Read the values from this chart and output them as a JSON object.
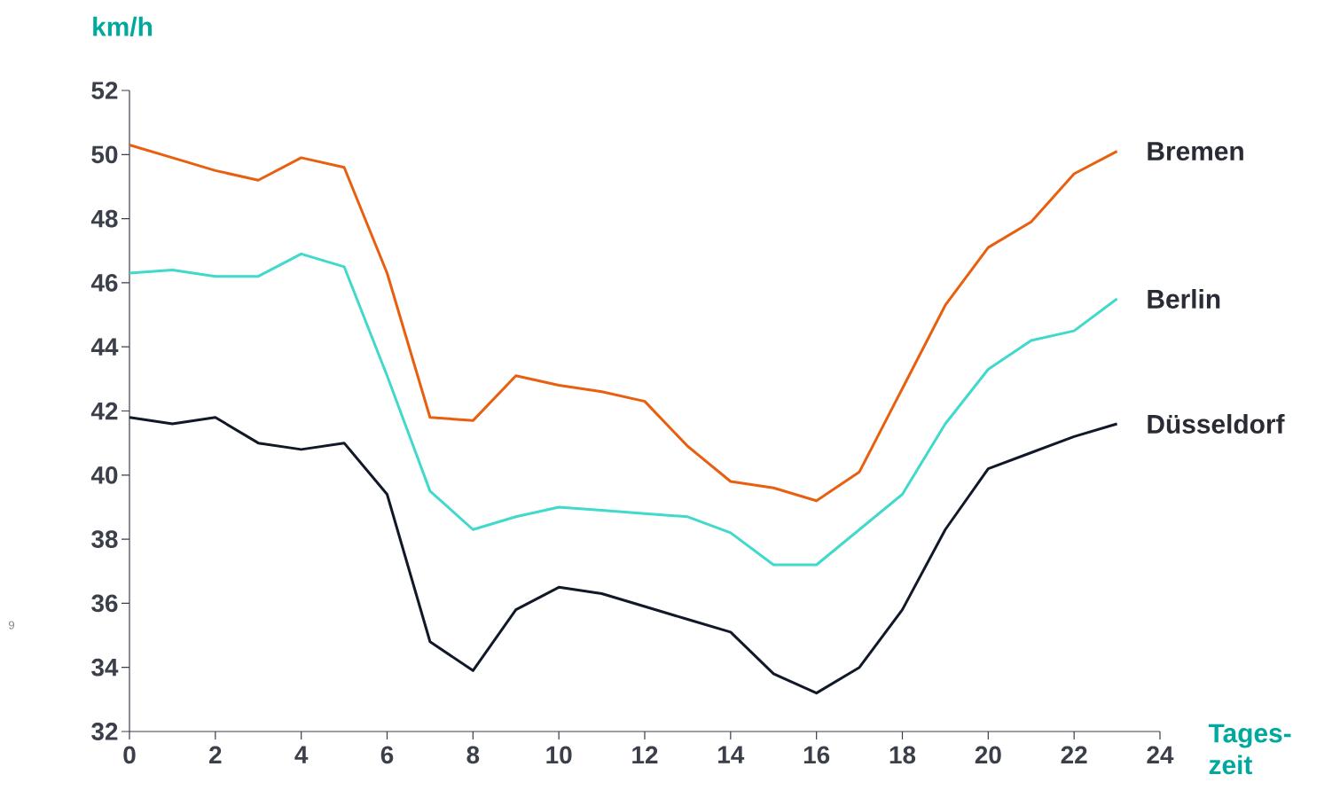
{
  "chart_data": {
    "type": "line",
    "ylabel": "km/h",
    "xlabel": "Tages- zeit",
    "x": [
      0,
      1,
      2,
      3,
      4,
      5,
      6,
      7,
      8,
      9,
      10,
      11,
      12,
      13,
      14,
      15,
      16,
      17,
      18,
      19,
      20,
      21,
      22,
      23
    ],
    "series": [
      {
        "name": "Bremen",
        "color": "#e8600f",
        "values": [
          50.3,
          49.9,
          49.5,
          49.2,
          49.9,
          49.6,
          46.3,
          41.8,
          41.7,
          43.1,
          42.8,
          42.6,
          42.3,
          40.9,
          39.8,
          39.6,
          39.2,
          40.1,
          42.7,
          45.3,
          47.1,
          47.9,
          49.4,
          50.1
        ]
      },
      {
        "name": "Berlin",
        "color": "#40d9cc",
        "values": [
          46.3,
          46.4,
          46.2,
          46.2,
          46.9,
          46.5,
          43.1,
          39.5,
          38.3,
          38.7,
          39.0,
          38.9,
          38.8,
          38.7,
          38.2,
          37.2,
          37.2,
          38.3,
          39.4,
          41.6,
          43.3,
          44.2,
          44.5,
          45.5
        ]
      },
      {
        "name": "Düsseldorf",
        "color": "#111827",
        "values": [
          41.8,
          41.6,
          41.8,
          41.0,
          40.8,
          41.0,
          39.4,
          34.8,
          33.9,
          35.8,
          36.5,
          36.3,
          35.9,
          35.5,
          35.1,
          33.8,
          33.2,
          34.0,
          35.8,
          38.3,
          40.2,
          40.7,
          41.2,
          41.6
        ]
      }
    ],
    "xlim": [
      0,
      24
    ],
    "ylim": [
      32,
      52
    ],
    "xticks": [
      0,
      2,
      4,
      6,
      8,
      10,
      12,
      14,
      16,
      18,
      20,
      22,
      24
    ],
    "yticks": [
      32,
      34,
      36,
      38,
      40,
      42,
      44,
      46,
      48,
      50,
      52
    ],
    "grid": false,
    "marker": "none",
    "line_style": "solid",
    "annotations": [
      "9"
    ]
  }
}
